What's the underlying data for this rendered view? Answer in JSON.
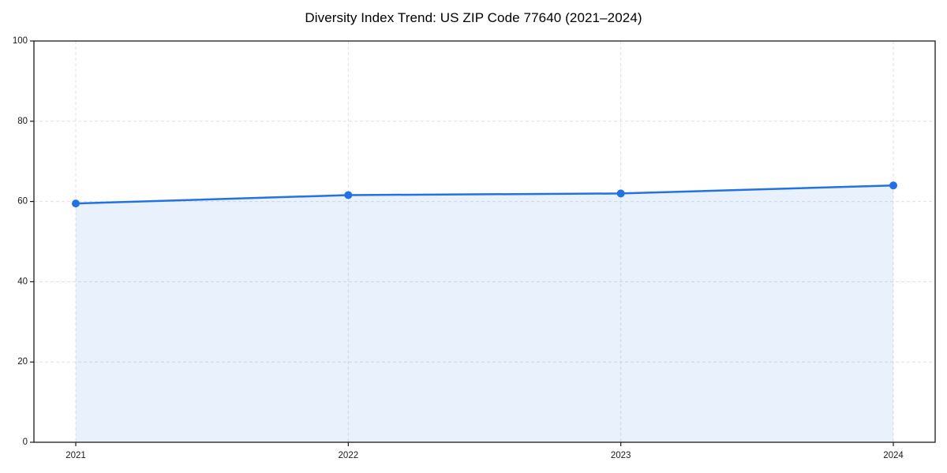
{
  "chart_data": {
    "type": "line",
    "title": "Diversity Index Trend: US ZIP Code 77640 (2021–2024)",
    "categories": [
      "2021",
      "2022",
      "2023",
      "2024"
    ],
    "series": [
      {
        "name": "Diversity Index",
        "values": [
          59.5,
          61.6,
          62.0,
          64.0
        ]
      }
    ],
    "xlabel": "",
    "ylabel": "",
    "ylim": [
      0,
      100
    ],
    "yticks": [
      0,
      20,
      40,
      60,
      80,
      100
    ],
    "grid": true,
    "grid_style": "dashed",
    "area_fill": true,
    "legend_position": "none",
    "colors": {
      "line": "#2272e5",
      "marker": "#2272e5",
      "area_fill": "#2272e5",
      "area_fill_opacity": 0.1,
      "grid": "#e0e0e0",
      "axis": "#1a1a1a",
      "tick_label": "#1a1a1a",
      "background": "#ffffff"
    }
  }
}
